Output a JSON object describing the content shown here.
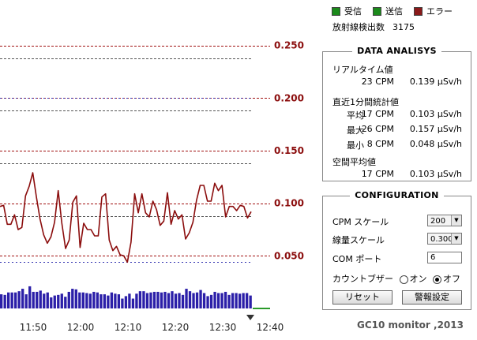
{
  "legend": {
    "items": [
      {
        "label": "受信",
        "color": "#1b8a1b"
      },
      {
        "label": "送信",
        "color": "#1b8a1b"
      },
      {
        "label": "エラー",
        "color": "#8a1a1a"
      }
    ],
    "count_label": "放射線検出数",
    "count_value": "3175"
  },
  "analysis": {
    "title": "DATA ANALISYS",
    "realtime_label": "リアルタイム値",
    "realtime_cpm": "23",
    "realtime_usv": "0.139",
    "stats_label": "直近1分間統計値",
    "rows": [
      {
        "label": "平均",
        "cpm": "17",
        "usv": "0.103"
      },
      {
        "label": "最大",
        "cpm": "26",
        "usv": "0.157"
      },
      {
        "label": "最小",
        "cpm": "8",
        "usv": "0.048"
      }
    ],
    "space_label": "空間平均値",
    "space_cpm": "17",
    "space_usv": "0.103",
    "cpm_unit": "CPM",
    "usv_unit": "µSv/h"
  },
  "config": {
    "title": "CONFIGURATION",
    "cpm_scale_label": "CPM スケール",
    "cpm_scale_value": "200",
    "dose_scale_label": "線量スケール",
    "dose_scale_value": "0.300",
    "com_port_label": "COM ポート",
    "com_port_value": "6",
    "buzzer_label": "カウントブザー",
    "buzzer_on": "オン",
    "buzzer_off": "オフ",
    "buzzer_selected": "オフ",
    "reset_button": "リセット",
    "alarm_button": "警報設定"
  },
  "footer": "GC10 monitor ,2013",
  "colors": {
    "line": "#8b0d0d",
    "bars": "#2b1fa8",
    "right_tick": "#8b0d0d",
    "grid_dark": "#555555",
    "grid_red": "#a01010",
    "grid_blue": "#3030b0"
  },
  "chart_data": {
    "type": "line",
    "x_ticks": [
      "11:50",
      "12:00",
      "12:10",
      "12:20",
      "12:30",
      "12:40"
    ],
    "right_axis_ticks": [
      "0.250",
      "0.200",
      "0.150",
      "0.100",
      "0.050"
    ],
    "ylim": [
      0,
      0.3
    ],
    "series": [
      {
        "kind": "line",
        "values": [
          0.097,
          0.098,
          0.08,
          0.08,
          0.089,
          0.075,
          0.077,
          0.107,
          0.116,
          0.129,
          0.106,
          0.085,
          0.07,
          0.062,
          0.068,
          0.082,
          0.112,
          0.081,
          0.057,
          0.065,
          0.101,
          0.107,
          0.058,
          0.081,
          0.075,
          0.075,
          0.069,
          0.069,
          0.106,
          0.109,
          0.065,
          0.055,
          0.059,
          0.051,
          0.05,
          0.044,
          0.063,
          0.109,
          0.091,
          0.109,
          0.091,
          0.087,
          0.102,
          0.094,
          0.079,
          0.083,
          0.11,
          0.08,
          0.093,
          0.085,
          0.089,
          0.066,
          0.072,
          0.082,
          0.103,
          0.117,
          0.117,
          0.102,
          0.102,
          0.119,
          0.112,
          0.117,
          0.087,
          0.097,
          0.097,
          0.093,
          0.098,
          0.097,
          0.086,
          0.092
        ]
      },
      {
        "kind": "bar",
        "values": [
          23,
          22,
          26,
          26,
          26,
          28,
          32,
          23,
          36,
          27,
          27,
          29,
          24,
          26,
          18,
          21,
          22,
          24,
          19,
          27,
          32,
          31,
          26,
          26,
          25,
          24,
          27,
          26,
          23,
          23,
          21,
          26,
          24,
          23,
          16,
          20,
          24,
          16,
          24,
          28,
          28,
          25,
          26,
          27,
          27,
          26,
          27,
          25,
          28,
          24,
          25,
          22,
          32,
          28,
          25,
          26,
          30,
          25,
          20,
          22,
          27,
          25,
          25,
          27,
          22,
          25,
          25,
          24,
          25,
          25,
          21
        ]
      }
    ]
  }
}
